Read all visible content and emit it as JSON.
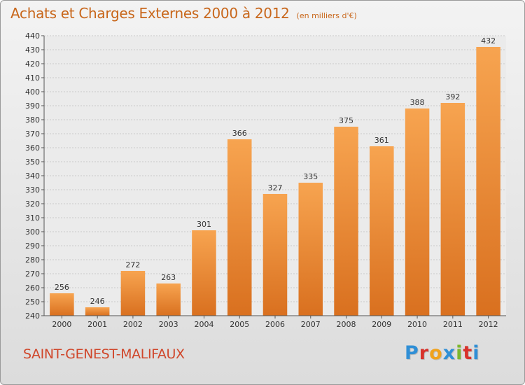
{
  "header": {
    "title": "Achats et Charges Externes 2000 à 2012",
    "unit": "(en milliers d'€)"
  },
  "footer": {
    "city": "SAINT-GENEST-MALIFAUX",
    "logo_letters": [
      "P",
      "r",
      "o",
      "x",
      "i",
      "t",
      "i"
    ],
    "logo_colors": [
      "#2f8fd6",
      "#d8322b",
      "#f0a21d",
      "#2f8fd6",
      "#7cb72c",
      "#d8322b",
      "#2f8fd6"
    ]
  },
  "colors": {
    "bar_light": "#f7a450",
    "bar_dark": "#d9701f",
    "title": "#c8661a",
    "city": "#d0462a"
  },
  "chart_data": {
    "type": "bar",
    "title": "Achats et Charges Externes 2000 à 2012",
    "subtitle": "(en milliers d'€)",
    "xlabel": "",
    "ylabel": "",
    "categories": [
      "2000",
      "2001",
      "2002",
      "2003",
      "2004",
      "2005",
      "2006",
      "2007",
      "2008",
      "2009",
      "2010",
      "2011",
      "2012"
    ],
    "values": [
      256,
      246,
      272,
      263,
      301,
      366,
      327,
      335,
      375,
      361,
      388,
      392,
      432
    ],
    "ylim": [
      240,
      440
    ],
    "yticks": [
      240,
      250,
      260,
      270,
      280,
      290,
      300,
      310,
      320,
      330,
      340,
      350,
      360,
      370,
      380,
      390,
      400,
      410,
      420,
      430,
      440
    ],
    "grid": true,
    "legend": "none"
  }
}
